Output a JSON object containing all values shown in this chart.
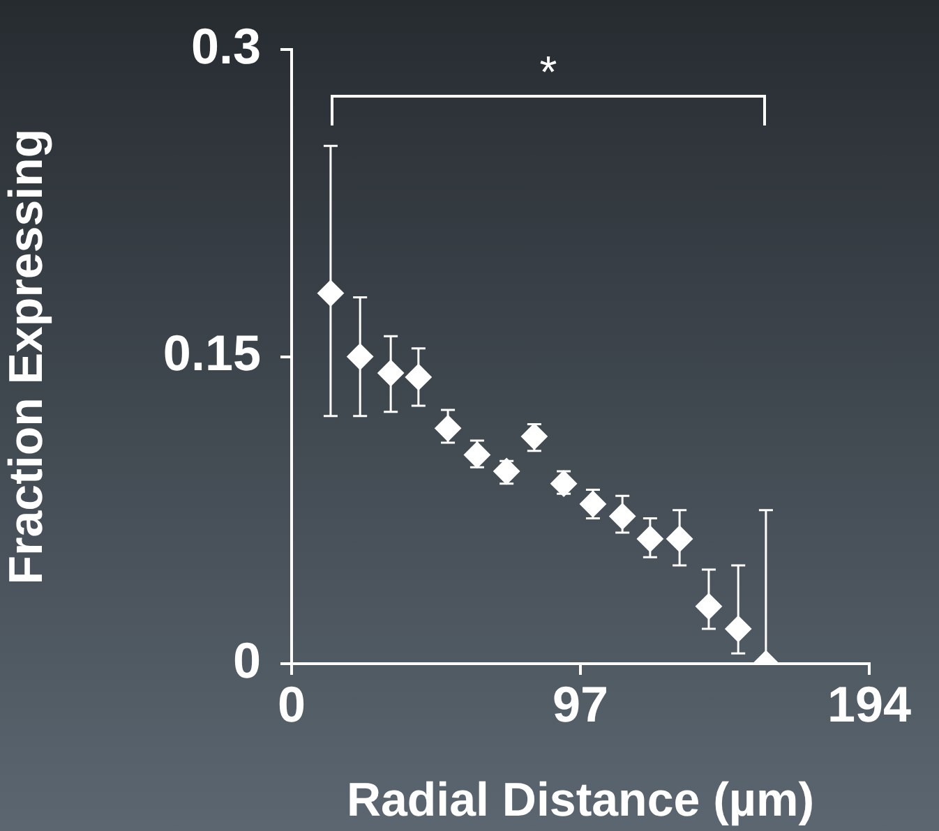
{
  "chart_data": {
    "type": "scatter",
    "xlabel": "Radial Distance (µm)",
    "ylabel": "Fraction Expressing",
    "x": [
      13.1,
      23,
      33.3,
      42.6,
      52.5,
      62.3,
      72.2,
      81.5,
      91.4,
      101.2,
      111.1,
      120.4,
      130.3,
      140.1,
      150,
      159.3
    ],
    "values": [
      0.181,
      0.15,
      0.142,
      0.14,
      0.115,
      0.102,
      0.094,
      0.111,
      0.088,
      0.078,
      0.072,
      0.061,
      0.061,
      0.028,
      0.017,
      0
    ],
    "errors": [
      [
        0.121,
        0.253
      ],
      [
        0.121,
        0.179
      ],
      [
        0.123,
        0.16
      ],
      [
        0.126,
        0.154
      ],
      [
        0.108,
        0.124
      ],
      [
        0.096,
        0.109
      ],
      [
        0.088,
        0.099
      ],
      [
        0.104,
        0.117
      ],
      [
        0.083,
        0.094
      ],
      [
        0.071,
        0.085
      ],
      [
        0.064,
        0.082
      ],
      [
        0.052,
        0.071
      ],
      [
        0.048,
        0.075
      ],
      [
        0.017,
        0.046
      ],
      [
        0.005,
        0.048
      ],
      [
        0,
        0.075
      ]
    ],
    "color": "#ffffff",
    "marker": "diamond",
    "xlim": [
      0,
      194
    ],
    "xticks": [
      0,
      97,
      194
    ],
    "ylim": [
      0,
      0.3
    ],
    "yticks": [
      0,
      0.15,
      0.3
    ],
    "grid": false,
    "legend": false,
    "annotations": [
      "*"
    ]
  }
}
